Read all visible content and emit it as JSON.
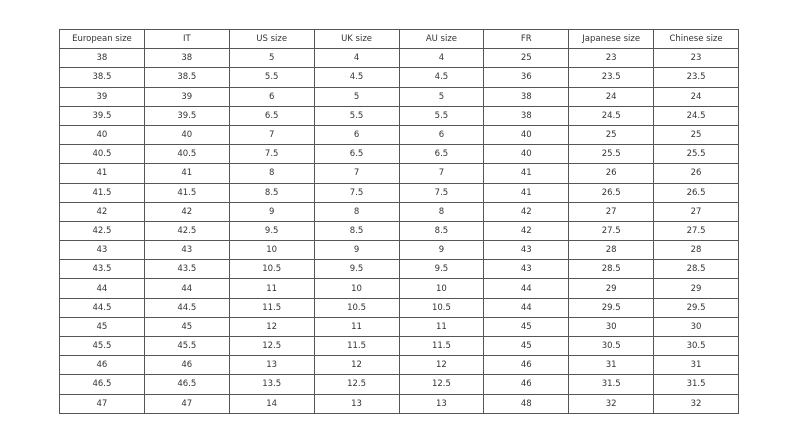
{
  "table": {
    "headers": [
      "European size",
      "IT",
      "US size",
      "UK size",
      "AU size",
      "FR",
      "Japanese size",
      "Chinese size"
    ],
    "rows": [
      [
        "38",
        "38",
        "5",
        "4",
        "4",
        "25",
        "23",
        "23"
      ],
      [
        "38.5",
        "38.5",
        "5.5",
        "4.5",
        "4.5",
        "36",
        "23.5",
        "23.5"
      ],
      [
        "39",
        "39",
        "6",
        "5",
        "5",
        "38",
        "24",
        "24"
      ],
      [
        "39.5",
        "39.5",
        "6.5",
        "5.5",
        "5.5",
        "38",
        "24.5",
        "24.5"
      ],
      [
        "40",
        "40",
        "7",
        "6",
        "6",
        "40",
        "25",
        "25"
      ],
      [
        "40.5",
        "40.5",
        "7.5",
        "6.5",
        "6.5",
        "40",
        "25.5",
        "25.5"
      ],
      [
        "41",
        "41",
        "8",
        "7",
        "7",
        "41",
        "26",
        "26"
      ],
      [
        "41.5",
        "41.5",
        "8.5",
        "7.5",
        "7.5",
        "41",
        "26.5",
        "26.5"
      ],
      [
        "42",
        "42",
        "9",
        "8",
        "8",
        "42",
        "27",
        "27"
      ],
      [
        "42.5",
        "42.5",
        "9.5",
        "8.5",
        "8.5",
        "42",
        "27.5",
        "27.5"
      ],
      [
        "43",
        "43",
        "10",
        "9",
        "9",
        "43",
        "28",
        "28"
      ],
      [
        "43.5",
        "43.5",
        "10.5",
        "9.5",
        "9.5",
        "43",
        "28.5",
        "28.5"
      ],
      [
        "44",
        "44",
        "11",
        "10",
        "10",
        "44",
        "29",
        "29"
      ],
      [
        "44.5",
        "44.5",
        "11.5",
        "10.5",
        "10.5",
        "44",
        "29.5",
        "29.5"
      ],
      [
        "45",
        "45",
        "12",
        "11",
        "11",
        "45",
        "30",
        "30"
      ],
      [
        "45.5",
        "45.5",
        "12.5",
        "11.5",
        "11.5",
        "45",
        "30.5",
        "30.5"
      ],
      [
        "46",
        "46",
        "13",
        "12",
        "12",
        "46",
        "31",
        "31"
      ],
      [
        "46.5",
        "46.5",
        "13.5",
        "12.5",
        "12.5",
        "46",
        "31.5",
        "31.5"
      ],
      [
        "47",
        "47",
        "14",
        "13",
        "13",
        "48",
        "32",
        "32"
      ]
    ]
  }
}
